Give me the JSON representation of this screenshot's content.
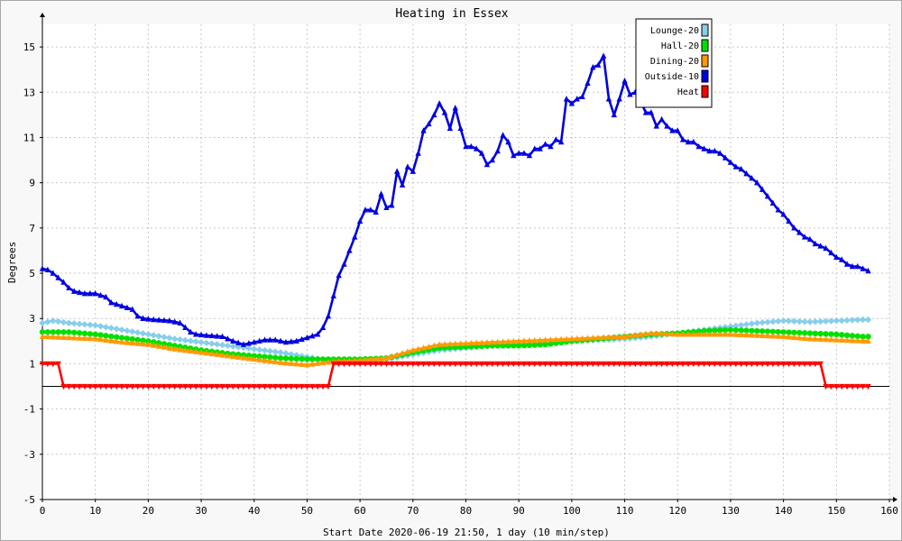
{
  "chart_data": {
    "type": "line",
    "title": "Heating in Essex",
    "xlabel": "Start Date 2020-06-19 21:50, 1 day (10 min/step)",
    "ylabel": "Degrees",
    "xlim": [
      0,
      160
    ],
    "ylim": [
      -5,
      16
    ],
    "xticks": [
      0,
      10,
      20,
      30,
      40,
      50,
      60,
      70,
      80,
      90,
      100,
      110,
      120,
      130,
      140,
      150,
      160
    ],
    "yticks": [
      -5,
      -3,
      -1,
      1,
      3,
      5,
      7,
      9,
      11,
      13,
      15
    ],
    "grid": true,
    "legend_position": "top-right",
    "series": [
      {
        "name": "Lounge-20",
        "color": "#87ceeb",
        "marker": "diamond",
        "points": [
          [
            0,
            2.8
          ],
          [
            2,
            2.9
          ],
          [
            5,
            2.8
          ],
          [
            10,
            2.7
          ],
          [
            15,
            2.5
          ],
          [
            20,
            2.3
          ],
          [
            25,
            2.1
          ],
          [
            30,
            1.95
          ],
          [
            35,
            1.8
          ],
          [
            40,
            1.65
          ],
          [
            45,
            1.5
          ],
          [
            50,
            1.3
          ],
          [
            54,
            1.15
          ],
          [
            60,
            1.15
          ],
          [
            65,
            1.2
          ],
          [
            70,
            1.4
          ],
          [
            75,
            1.6
          ],
          [
            80,
            1.7
          ],
          [
            85,
            1.8
          ],
          [
            90,
            1.85
          ],
          [
            95,
            1.9
          ],
          [
            100,
            2.0
          ],
          [
            105,
            2.05
          ],
          [
            110,
            2.1
          ],
          [
            115,
            2.2
          ],
          [
            120,
            2.35
          ],
          [
            125,
            2.5
          ],
          [
            130,
            2.65
          ],
          [
            135,
            2.8
          ],
          [
            140,
            2.9
          ],
          [
            145,
            2.85
          ],
          [
            150,
            2.9
          ],
          [
            155,
            2.95
          ],
          [
            156,
            2.95
          ]
        ]
      },
      {
        "name": "Hall-20",
        "color": "#00e000",
        "marker": "circle",
        "points": [
          [
            0,
            2.4
          ],
          [
            5,
            2.4
          ],
          [
            10,
            2.3
          ],
          [
            15,
            2.15
          ],
          [
            20,
            2.0
          ],
          [
            25,
            1.8
          ],
          [
            30,
            1.6
          ],
          [
            35,
            1.45
          ],
          [
            40,
            1.35
          ],
          [
            45,
            1.25
          ],
          [
            50,
            1.2
          ],
          [
            55,
            1.2
          ],
          [
            60,
            1.2
          ],
          [
            65,
            1.25
          ],
          [
            70,
            1.5
          ],
          [
            75,
            1.7
          ],
          [
            80,
            1.75
          ],
          [
            85,
            1.8
          ],
          [
            90,
            1.8
          ],
          [
            95,
            1.85
          ],
          [
            100,
            2.0
          ],
          [
            105,
            2.1
          ],
          [
            110,
            2.2
          ],
          [
            115,
            2.3
          ],
          [
            120,
            2.35
          ],
          [
            125,
            2.45
          ],
          [
            130,
            2.5
          ],
          [
            135,
            2.45
          ],
          [
            140,
            2.4
          ],
          [
            145,
            2.35
          ],
          [
            150,
            2.3
          ],
          [
            155,
            2.2
          ],
          [
            156,
            2.2
          ]
        ]
      },
      {
        "name": "Dining-20",
        "color": "#ff9900",
        "marker": "triangle",
        "points": [
          [
            0,
            2.2
          ],
          [
            5,
            2.15
          ],
          [
            10,
            2.1
          ],
          [
            15,
            1.95
          ],
          [
            20,
            1.85
          ],
          [
            25,
            1.65
          ],
          [
            30,
            1.5
          ],
          [
            35,
            1.35
          ],
          [
            40,
            1.2
          ],
          [
            45,
            1.05
          ],
          [
            50,
            0.95
          ],
          [
            55,
            1.1
          ],
          [
            60,
            1.15
          ],
          [
            65,
            1.25
          ],
          [
            70,
            1.6
          ],
          [
            75,
            1.85
          ],
          [
            80,
            1.9
          ],
          [
            85,
            1.95
          ],
          [
            90,
            2.0
          ],
          [
            95,
            2.05
          ],
          [
            100,
            2.1
          ],
          [
            105,
            2.15
          ],
          [
            110,
            2.2
          ],
          [
            115,
            2.35
          ],
          [
            120,
            2.3
          ],
          [
            125,
            2.3
          ],
          [
            130,
            2.3
          ],
          [
            135,
            2.25
          ],
          [
            140,
            2.2
          ],
          [
            145,
            2.1
          ],
          [
            150,
            2.05
          ],
          [
            155,
            2.0
          ],
          [
            156,
            2.0
          ]
        ]
      },
      {
        "name": "Outside-10",
        "color": "#0000e0",
        "marker": "triangle",
        "points": [
          [
            0,
            5.2
          ],
          [
            1,
            5.15
          ],
          [
            2,
            5.0
          ],
          [
            3,
            4.8
          ],
          [
            4,
            4.6
          ],
          [
            5,
            4.35
          ],
          [
            6,
            4.2
          ],
          [
            8,
            4.1
          ],
          [
            10,
            4.1
          ],
          [
            12,
            3.95
          ],
          [
            13,
            3.7
          ],
          [
            15,
            3.55
          ],
          [
            17,
            3.4
          ],
          [
            18,
            3.1
          ],
          [
            19,
            3.0
          ],
          [
            21,
            2.95
          ],
          [
            24,
            2.9
          ],
          [
            26,
            2.8
          ],
          [
            27,
            2.6
          ],
          [
            28,
            2.4
          ],
          [
            29,
            2.3
          ],
          [
            31,
            2.25
          ],
          [
            34,
            2.2
          ],
          [
            36,
            2.0
          ],
          [
            38,
            1.85
          ],
          [
            40,
            1.95
          ],
          [
            42,
            2.05
          ],
          [
            44,
            2.05
          ],
          [
            46,
            1.95
          ],
          [
            48,
            2.0
          ],
          [
            50,
            2.15
          ],
          [
            52,
            2.3
          ],
          [
            53,
            2.6
          ],
          [
            54,
            3.1
          ],
          [
            55,
            4.0
          ],
          [
            56,
            4.9
          ],
          [
            57,
            5.4
          ],
          [
            58,
            6.0
          ],
          [
            59,
            6.6
          ],
          [
            60,
            7.3
          ],
          [
            61,
            7.8
          ],
          [
            62,
            7.8
          ],
          [
            63,
            7.7
          ],
          [
            64,
            8.5
          ],
          [
            65,
            7.9
          ],
          [
            66,
            8.0
          ],
          [
            67,
            9.5
          ],
          [
            68,
            8.9
          ],
          [
            69,
            9.7
          ],
          [
            70,
            9.5
          ],
          [
            71,
            10.3
          ],
          [
            72,
            11.3
          ],
          [
            73,
            11.6
          ],
          [
            74,
            12.0
          ],
          [
            75,
            12.5
          ],
          [
            76,
            12.1
          ],
          [
            77,
            11.4
          ],
          [
            78,
            12.3
          ],
          [
            79,
            11.4
          ],
          [
            80,
            10.6
          ],
          [
            81,
            10.6
          ],
          [
            82,
            10.5
          ],
          [
            83,
            10.3
          ],
          [
            84,
            9.8
          ],
          [
            85,
            10.0
          ],
          [
            86,
            10.4
          ],
          [
            87,
            11.1
          ],
          [
            88,
            10.8
          ],
          [
            89,
            10.2
          ],
          [
            90,
            10.3
          ],
          [
            91,
            10.3
          ],
          [
            92,
            10.2
          ],
          [
            93,
            10.5
          ],
          [
            94,
            10.5
          ],
          [
            95,
            10.7
          ],
          [
            96,
            10.6
          ],
          [
            97,
            10.9
          ],
          [
            98,
            10.8
          ],
          [
            99,
            12.7
          ],
          [
            100,
            12.5
          ],
          [
            101,
            12.7
          ],
          [
            102,
            12.8
          ],
          [
            103,
            13.4
          ],
          [
            104,
            14.1
          ],
          [
            105,
            14.2
          ],
          [
            106,
            14.6
          ],
          [
            107,
            12.7
          ],
          [
            108,
            12.0
          ],
          [
            109,
            12.7
          ],
          [
            110,
            13.5
          ],
          [
            111,
            12.9
          ],
          [
            112,
            13.0
          ],
          [
            113,
            12.6
          ],
          [
            114,
            12.1
          ],
          [
            115,
            12.1
          ],
          [
            116,
            11.5
          ],
          [
            117,
            11.8
          ],
          [
            118,
            11.5
          ],
          [
            119,
            11.3
          ],
          [
            120,
            11.3
          ],
          [
            121,
            10.9
          ],
          [
            122,
            10.8
          ],
          [
            123,
            10.8
          ],
          [
            124,
            10.6
          ],
          [
            125,
            10.5
          ],
          [
            126,
            10.4
          ],
          [
            127,
            10.4
          ],
          [
            128,
            10.3
          ],
          [
            129,
            10.1
          ],
          [
            130,
            9.9
          ],
          [
            131,
            9.7
          ],
          [
            132,
            9.6
          ],
          [
            133,
            9.4
          ],
          [
            134,
            9.2
          ],
          [
            135,
            9.0
          ],
          [
            136,
            8.7
          ],
          [
            137,
            8.4
          ],
          [
            138,
            8.1
          ],
          [
            139,
            7.8
          ],
          [
            140,
            7.6
          ],
          [
            141,
            7.3
          ],
          [
            142,
            7.0
          ],
          [
            143,
            6.8
          ],
          [
            144,
            6.6
          ],
          [
            145,
            6.5
          ],
          [
            146,
            6.3
          ],
          [
            147,
            6.2
          ],
          [
            148,
            6.1
          ],
          [
            149,
            5.9
          ],
          [
            150,
            5.7
          ],
          [
            151,
            5.6
          ],
          [
            152,
            5.4
          ],
          [
            153,
            5.3
          ],
          [
            154,
            5.3
          ],
          [
            155,
            5.2
          ],
          [
            156,
            5.1
          ]
        ]
      },
      {
        "name": "Heat",
        "color": "#ff0000",
        "marker": "triangle-down",
        "points": [
          [
            0,
            1.0
          ],
          [
            1,
            1.0
          ],
          [
            2,
            1.0
          ],
          [
            3,
            1.0
          ],
          [
            4,
            0.0
          ],
          [
            54,
            0.0
          ],
          [
            55,
            1.0
          ],
          [
            147,
            1.0
          ],
          [
            148,
            0.0
          ],
          [
            156,
            0.0
          ]
        ]
      }
    ]
  }
}
